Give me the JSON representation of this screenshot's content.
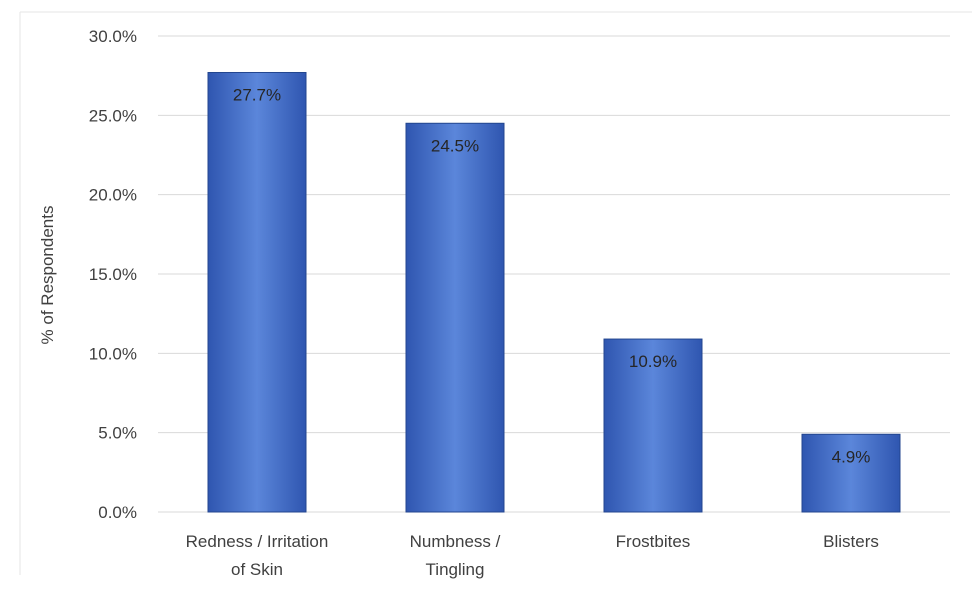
{
  "chart_data": {
    "type": "bar",
    "title": "",
    "xlabel": "",
    "ylabel": "% of Respondents",
    "categories": [
      [
        "Redness / Irritation",
        "of Skin"
      ],
      [
        "Numbness /",
        "Tingling"
      ],
      [
        "Frostbites"
      ],
      [
        "Blisters"
      ]
    ],
    "values": [
      27.7,
      24.5,
      10.9,
      4.9
    ],
    "data_labels": [
      "27.7%",
      "24.5%",
      "10.9%",
      "4.9%"
    ],
    "ylim": [
      0,
      30
    ],
    "yticks": [
      0,
      5,
      10,
      15,
      20,
      25,
      30
    ],
    "ytick_labels": [
      "0.0%",
      "5.0%",
      "10.0%",
      "15.0%",
      "20.0%",
      "25.0%",
      "30.0%"
    ],
    "grid": true,
    "legend": "none"
  },
  "colors": {
    "bar_fill_light": "#5b86da",
    "bar_fill_dark": "#2f56b0",
    "bar_edge": "#23468f",
    "gridline": "#d9d9d9",
    "axis_text": "#404040",
    "data_label_text": "#262626"
  }
}
